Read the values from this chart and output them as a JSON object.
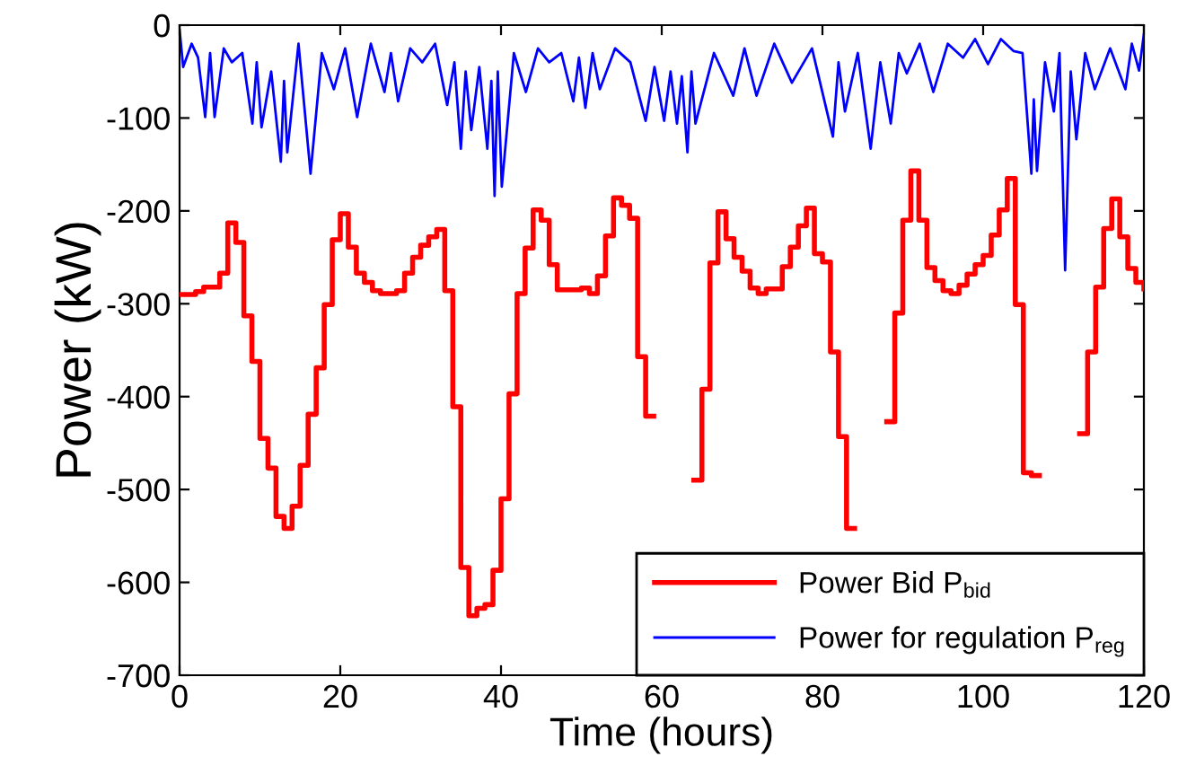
{
  "chart_data": {
    "type": "step",
    "xlabel": "Time (hours)",
    "ylabel": "Power (kW)",
    "xlim": [
      0,
      120
    ],
    "xticks": [
      0,
      20,
      40,
      60,
      80,
      100,
      120
    ],
    "ylim": [
      -700,
      0
    ],
    "yticks": [
      -700,
      -600,
      -500,
      -400,
      -300,
      -200,
      -100,
      0
    ],
    "grid": false,
    "legend": "bottom right",
    "line_style": "solid",
    "marker": "none",
    "series": [
      {
        "name": "Power for regulation P$_{reg}$",
        "type": "line",
        "color": "#0000ff",
        "x": [
          0,
          0.45,
          1.5,
          2.3,
          3.19,
          3.8,
          4.36,
          5.5,
          6.5,
          7.8,
          9.06,
          9.6,
          10.2,
          11.4,
          12.6,
          13.0,
          13.4,
          14.8,
          16.3,
          17.7,
          19.2,
          20.6,
          22.1,
          23.8,
          25.5,
          26.3,
          27.2,
          28.7,
          30.2,
          31.8,
          33.3,
          34.2,
          35.0,
          35.6,
          36.3,
          37.3,
          38.3,
          38.8,
          39.2,
          39.6,
          40.1,
          41.6,
          43.1,
          44.6,
          46.0,
          47.5,
          49.0,
          49.7,
          50.5,
          51.4,
          52.3,
          54.2,
          56.1,
          58.0,
          59.1,
          60.3,
          61.1,
          61.9,
          62.5,
          63.2,
          63.7,
          64.2,
          66.5,
          68.9,
          70.3,
          71.8,
          74.0,
          76.2,
          78.7,
          81.3,
          82.0,
          82.8,
          84.4,
          86.0,
          87.2,
          88.5,
          89.5,
          90.5,
          92.1,
          93.8,
          95.6,
          97.5,
          99.0,
          100.6,
          102.2,
          103.8,
          104.9,
          106.0,
          106.3,
          106.7,
          107.7,
          108.8,
          109.5,
          110.2,
          110.9,
          111.6,
          112.7,
          113.9,
          115.8,
          117.7,
          118.5,
          119.4,
          120
        ],
        "values": [
          -5,
          -45,
          -20,
          -35,
          -99,
          -30,
          -99,
          -25,
          -40,
          -30,
          -106,
          -40,
          -110,
          -50,
          -147,
          -60,
          -137,
          -20,
          -160,
          -30,
          -69,
          -25,
          -99,
          -20,
          -72,
          -30,
          -82,
          -25,
          -40,
          -20,
          -86,
          -40,
          -133,
          -50,
          -113,
          -45,
          -133,
          -60,
          -184,
          -50,
          -174,
          -30,
          -72,
          -25,
          -40,
          -30,
          -82,
          -35,
          -89,
          -30,
          -69,
          -25,
          -40,
          -103,
          -45,
          -103,
          -50,
          -106,
          -55,
          -137,
          -50,
          -106,
          -30,
          -76,
          -25,
          -76,
          -20,
          -62,
          -25,
          -120,
          -40,
          -93,
          -30,
          -133,
          -40,
          -106,
          -30,
          -52,
          -20,
          -72,
          -20,
          -35,
          -15,
          -42,
          -15,
          -28,
          -30,
          -160,
          -80,
          -157,
          -40,
          -93,
          -30,
          -264,
          -50,
          -123,
          -30,
          -69,
          -25,
          -69,
          -20,
          -49,
          -10
        ]
      },
      {
        "name": "Power Bid P$_{bid}$",
        "color": "#ff0000",
        "x": [
          0,
          1,
          2,
          3,
          4,
          5,
          6,
          7,
          8,
          9,
          10,
          11,
          12,
          13,
          14,
          15,
          16,
          17,
          18,
          19,
          20,
          21,
          22,
          23,
          24,
          25,
          26,
          27,
          28,
          29,
          30,
          31,
          32,
          33,
          34,
          35,
          36,
          37,
          38,
          39,
          40,
          41,
          42,
          43,
          44,
          45,
          46,
          47,
          48,
          49,
          50,
          51,
          52,
          53,
          54,
          55,
          56,
          57,
          58,
          59,
          60,
          61,
          62,
          63,
          64,
          65,
          66,
          67,
          68,
          69,
          70,
          71,
          72,
          73,
          74,
          75,
          76,
          77,
          78,
          79,
          80,
          81,
          82,
          83,
          84,
          85,
          86,
          87,
          88,
          89,
          90,
          91,
          92,
          93,
          94,
          95,
          96,
          97,
          98,
          99,
          100,
          101,
          102,
          103,
          104,
          105,
          106,
          107,
          108,
          109,
          110,
          111,
          112,
          113,
          114,
          115,
          116,
          117,
          118,
          119,
          120
        ],
        "values": [
          -290,
          -290,
          -287,
          -282,
          -282,
          -267,
          -213,
          -234,
          -313,
          -362,
          -445,
          -477,
          -529,
          -542,
          -518,
          -474,
          -419,
          -369,
          -301,
          -231,
          -203,
          -239,
          -267,
          -277,
          -286,
          -289,
          -289,
          -286,
          -267,
          -250,
          -237,
          -228,
          -220,
          -286,
          -411,
          -584,
          -636,
          -628,
          -624,
          -587,
          -510,
          -397,
          -289,
          -240,
          -199,
          -210,
          -258,
          -285,
          -285,
          -285,
          -283,
          -289,
          -270,
          -227,
          -186,
          -194,
          -208,
          -357,
          -421,
          null,
          null,
          null,
          null,
          null,
          -490,
          -392,
          -256,
          -201,
          -230,
          -250,
          -265,
          -283,
          -289,
          -284,
          -284,
          -260,
          -239,
          -216,
          -197,
          -246,
          -255,
          -352,
          -443,
          -542,
          null,
          null,
          null,
          null,
          -427,
          -310,
          -210,
          -157,
          -210,
          -261,
          -275,
          -286,
          -289,
          -280,
          -268,
          -258,
          -248,
          -226,
          -199,
          -165,
          -301,
          -482,
          -485,
          null,
          null,
          null,
          null,
          null,
          -440,
          -352,
          -282,
          -219,
          -187,
          -228,
          -262,
          -277,
          -284
        ]
      }
    ]
  }
}
